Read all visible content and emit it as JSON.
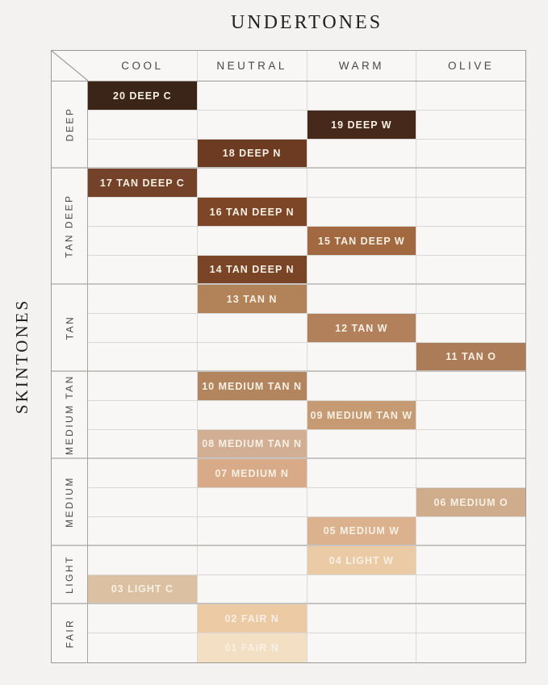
{
  "title": "UNDERTONES",
  "side_title": "SKINTONES",
  "colors": {
    "page_bg": "#f3f2f0",
    "empty_cell_bg": "#f8f7f5",
    "grid_line": "#dad8d5",
    "outer_line": "#9b9995",
    "group_line": "#c6c4c0",
    "header_text": "#4a4846",
    "title_text": "#22201e",
    "shade_text": "#f7f0e4"
  },
  "chart_data": {
    "type": "table",
    "x_dimension": "UNDERTONES",
    "y_dimension": "SKINTONES",
    "columns": [
      "COOL",
      "NEUTRAL",
      "WARM",
      "OLIVE"
    ],
    "row_groups": [
      {
        "label": "DEEP",
        "rows": 3
      },
      {
        "label": "TAN DEEP",
        "rows": 4
      },
      {
        "label": "TAN",
        "rows": 3
      },
      {
        "label": "MEDIUM TAN",
        "rows": 3
      },
      {
        "label": "MEDIUM",
        "rows": 3
      },
      {
        "label": "LIGHT",
        "rows": 2
      },
      {
        "label": "FAIR",
        "rows": 2
      }
    ],
    "shades": [
      {
        "row": 1,
        "group": "DEEP",
        "undertone": "COOL",
        "label": "20 DEEP C",
        "color": "#3a2518"
      },
      {
        "row": 2,
        "group": "DEEP",
        "undertone": "WARM",
        "label": "19 DEEP W",
        "color": "#46291b"
      },
      {
        "row": 3,
        "group": "DEEP",
        "undertone": "NEUTRAL",
        "label": "18 DEEP N",
        "color": "#6c3b22"
      },
      {
        "row": 4,
        "group": "TAN DEEP",
        "undertone": "COOL",
        "label": "17 TAN DEEP C",
        "color": "#744229"
      },
      {
        "row": 5,
        "group": "TAN DEEP",
        "undertone": "NEUTRAL",
        "label": "16 TAN DEEP N",
        "color": "#7d4727"
      },
      {
        "row": 6,
        "group": "TAN DEEP",
        "undertone": "WARM",
        "label": "15 TAN DEEP W",
        "color": "#a26940"
      },
      {
        "row": 7,
        "group": "TAN DEEP",
        "undertone": "NEUTRAL",
        "label": "14 TAN DEEP N",
        "color": "#7a4426"
      },
      {
        "row": 8,
        "group": "TAN",
        "undertone": "NEUTRAL",
        "label": "13 TAN N",
        "color": "#b28259"
      },
      {
        "row": 9,
        "group": "TAN",
        "undertone": "WARM",
        "label": "12 TAN W",
        "color": "#b2805b"
      },
      {
        "row": 10,
        "group": "TAN",
        "undertone": "OLIVE",
        "label": "11 TAN O",
        "color": "#ac7c58"
      },
      {
        "row": 11,
        "group": "MEDIUM TAN",
        "undertone": "NEUTRAL",
        "label": "10 MEDIUM TAN N",
        "color": "#b3855e"
      },
      {
        "row": 12,
        "group": "MEDIUM TAN",
        "undertone": "WARM",
        "label": "09 MEDIUM TAN W",
        "color": "#c69b73"
      },
      {
        "row": 13,
        "group": "MEDIUM TAN",
        "undertone": "NEUTRAL",
        "label": "08 MEDIUM TAN N",
        "color": "#d1ae94"
      },
      {
        "row": 14,
        "group": "MEDIUM",
        "undertone": "NEUTRAL",
        "label": "07 MEDIUM N",
        "color": "#d9aa88"
      },
      {
        "row": 15,
        "group": "MEDIUM",
        "undertone": "OLIVE",
        "label": "06 MEDIUM O",
        "color": "#cfac8c"
      },
      {
        "row": 16,
        "group": "MEDIUM",
        "undertone": "WARM",
        "label": "05 MEDIUM W",
        "color": "#dcb28e"
      },
      {
        "row": 17,
        "group": "LIGHT",
        "undertone": "WARM",
        "label": "04 LIGHT W",
        "color": "#ebcba6"
      },
      {
        "row": 18,
        "group": "LIGHT",
        "undertone": "COOL",
        "label": "03 LIGHT C",
        "color": "#dcc0a2"
      },
      {
        "row": 19,
        "group": "FAIR",
        "undertone": "NEUTRAL",
        "label": "02 FAIR N",
        "color": "#eccaa3"
      },
      {
        "row": 20,
        "group": "FAIR",
        "undertone": "NEUTRAL",
        "label": "01 FAIR N",
        "color": "#f2dfc4"
      }
    ]
  }
}
